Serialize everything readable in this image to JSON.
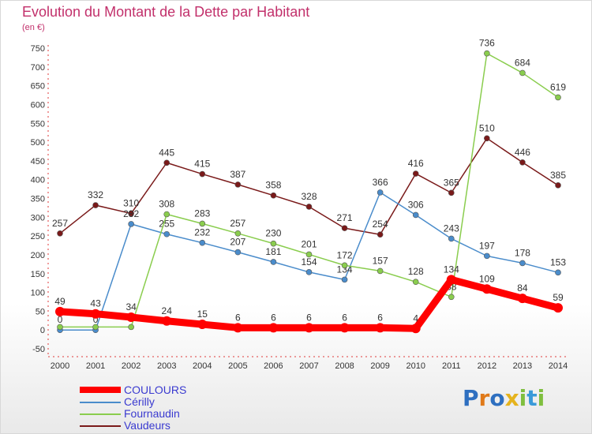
{
  "title": "Evolution du Montant de la Dette par Habitant",
  "subtitle": "(en €)",
  "logo": {
    "letters": [
      "P",
      "r",
      "o",
      "x",
      "i",
      "t",
      "i"
    ],
    "colors": [
      "#2e6fc0",
      "#e07a1a",
      "#2e6fc0",
      "#e5b31d",
      "#7fbf3f",
      "#3a9ad9",
      "#7fbf3f"
    ]
  },
  "chart_data": {
    "type": "line",
    "x": [
      "2000",
      "2001",
      "2002",
      "2003",
      "2004",
      "2005",
      "2006",
      "2007",
      "2008",
      "2009",
      "2010",
      "2011",
      "2012",
      "2013",
      "2014"
    ],
    "ylim": [
      -50,
      750
    ],
    "y_ticks": [
      "-50",
      "0",
      "50",
      "100",
      "150",
      "200",
      "250",
      "300",
      "350",
      "400",
      "450",
      "500",
      "550",
      "600",
      "650",
      "700",
      "750"
    ],
    "grid": false,
    "legend_position": "bottom-left",
    "series": [
      {
        "name": "Vaudeurs",
        "color": "#7a1a1a",
        "values": [
          257,
          332,
          310,
          445,
          415,
          387,
          358,
          328,
          271,
          254,
          416,
          365,
          510,
          446,
          385
        ],
        "labels": [
          "257",
          "332",
          "310",
          "445",
          "415",
          "387",
          "358",
          "328",
          "271",
          "254",
          "416",
          "365",
          "510",
          "446",
          "385"
        ]
      },
      {
        "name": "Cérilly",
        "color": "#4a8ccb",
        "values": [
          0,
          0,
          282,
          255,
          232,
          207,
          181,
          154,
          134,
          366,
          306,
          243,
          197,
          178,
          153
        ],
        "labels": [
          "0",
          "0",
          "282",
          "255",
          "232",
          "207",
          "181",
          "154",
          "134",
          "366",
          "306",
          "243",
          "197",
          "178",
          "153"
        ]
      },
      {
        "name": "Fournaudin",
        "color": "#8acd4e",
        "values": [
          8,
          8,
          8,
          308,
          283,
          257,
          230,
          201,
          172,
          157,
          128,
          88,
          736,
          684,
          619
        ],
        "labels": [
          null,
          null,
          null,
          "308",
          "283",
          "257",
          "230",
          "201",
          "172",
          "157",
          "128",
          "88",
          "736",
          "684",
          "619"
        ]
      },
      {
        "name": "COULOURS",
        "color": "#ff0000",
        "values": [
          49,
          43,
          34,
          24,
          15,
          6,
          6,
          6,
          6,
          6,
          4,
          134,
          109,
          84,
          59
        ],
        "labels": [
          "49",
          "43",
          "34",
          "24",
          "15",
          "6",
          "6",
          "6",
          "6",
          "6",
          "4",
          "134",
          "109",
          "84",
          "59"
        ]
      }
    ],
    "legend": [
      {
        "name": "COULOURS",
        "color": "#ff0000"
      },
      {
        "name": "Cérilly",
        "color": "#4a8ccb"
      },
      {
        "name": "Fournaudin",
        "color": "#8acd4e"
      },
      {
        "name": "Vaudeurs",
        "color": "#7a1a1a"
      }
    ]
  }
}
